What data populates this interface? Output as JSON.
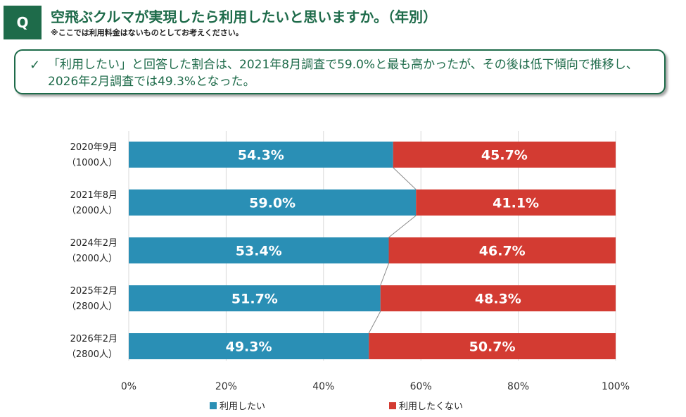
{
  "header": {
    "badge": "Q",
    "title": "空飛ぶクルマが実現したら利用したいと思いますか。（年別）",
    "note": "※ここでは利用料金はないものとしてお考えください。"
  },
  "summary": {
    "check": "✓",
    "text": "「利用したい」と回答した割合は、2021年8月調査で59.0%と最も高かったが、その後は低下傾向で推移し、2026年2月調査では49.3%となった。"
  },
  "colors": {
    "use": "#2a8fb5",
    "nouse": "#d33b32",
    "accent": "#1e6b4a"
  },
  "chart_data": {
    "type": "bar",
    "orientation": "horizontal",
    "stacked": true,
    "categories": [
      [
        "2020年9月",
        "（1000人）"
      ],
      [
        "2021年8月",
        "（2000人）"
      ],
      [
        "2024年2月",
        "（2000人）"
      ],
      [
        "2025年2月",
        "（2800人）"
      ],
      [
        "2026年2月",
        "（2800人）"
      ]
    ],
    "series": [
      {
        "name": "利用したい",
        "values": [
          54.3,
          59.0,
          53.4,
          51.7,
          49.3
        ],
        "labels": [
          "54.3%",
          "59.0%",
          "53.4%",
          "51.7%",
          "49.3%"
        ]
      },
      {
        "name": "利用したくない",
        "values": [
          45.7,
          41.1,
          46.7,
          48.3,
          50.7
        ],
        "labels": [
          "45.7%",
          "41.1%",
          "46.7%",
          "48.3%",
          "50.7%"
        ]
      }
    ],
    "xlim": [
      0,
      100
    ],
    "xticks": [
      "0%",
      "20%",
      "40%",
      "60%",
      "80%",
      "100%"
    ],
    "grid": true,
    "legend": "bottom"
  }
}
